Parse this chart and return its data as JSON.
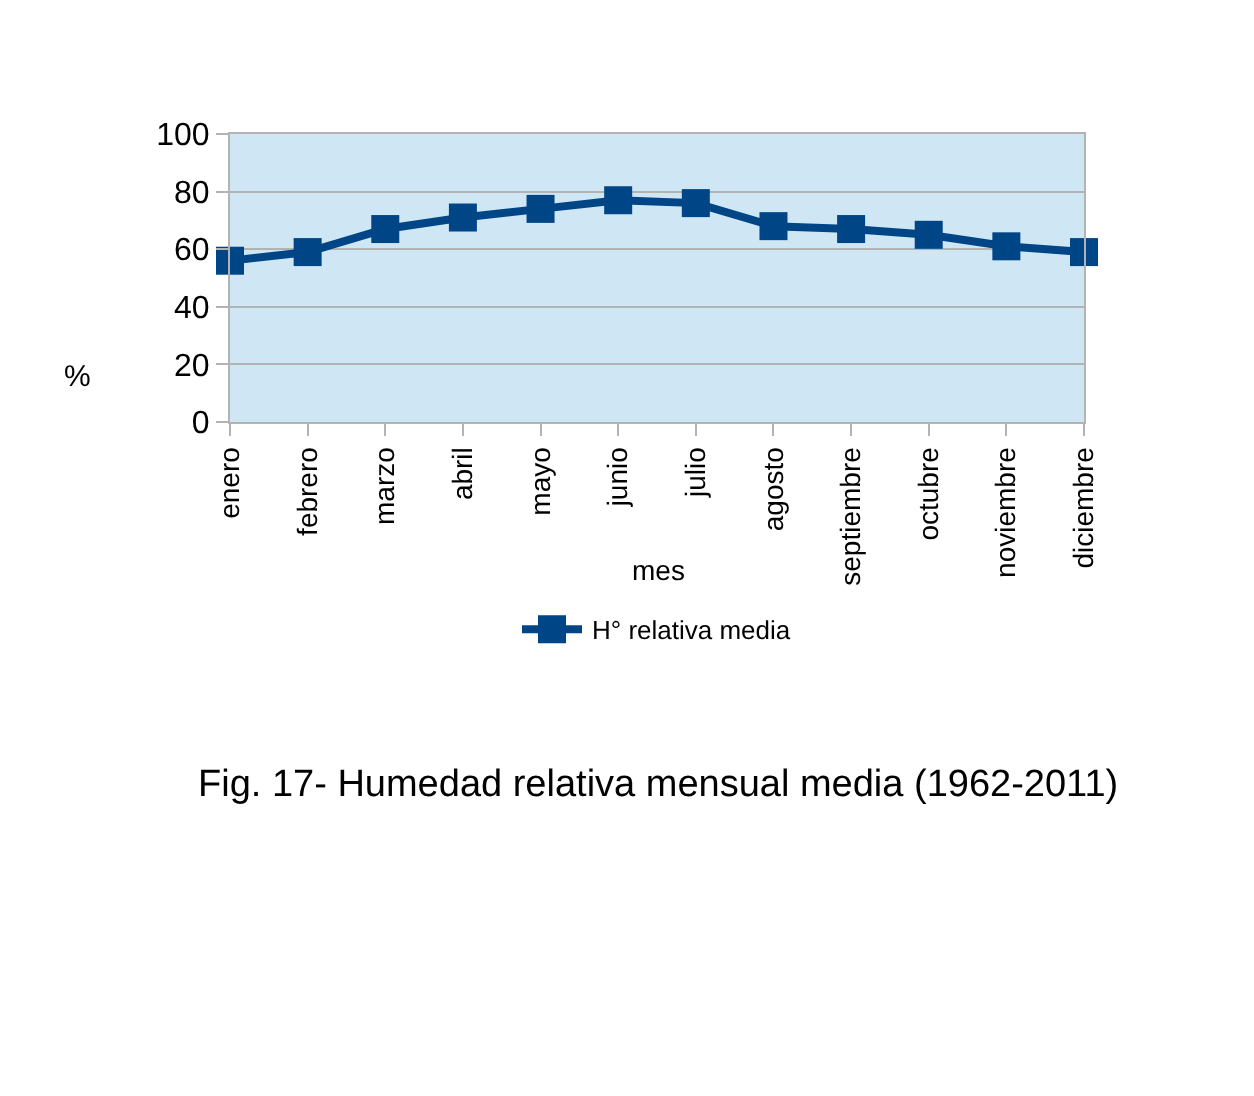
{
  "chart_data": {
    "type": "line",
    "categories": [
      "enero",
      "febrero",
      "marzo",
      "abril",
      "mayo",
      "junio",
      "julio",
      "agosto",
      "septiembre",
      "octubre",
      "noviembre",
      "diciembre"
    ],
    "series": [
      {
        "name": "H° relativa media",
        "color": "#004586",
        "values": [
          56,
          59,
          67,
          71,
          74,
          77,
          76,
          68,
          67,
          65,
          61,
          59
        ]
      }
    ],
    "xlabel": "mes",
    "ylabel": "%",
    "ylim": [
      0,
      100
    ],
    "yticks": [
      0,
      20,
      40,
      60,
      80,
      100
    ],
    "grid": "y",
    "legend": "bottom",
    "marker": "square",
    "line_style": "solid",
    "annotations": [
      "Fig. 17- Humedad relativa mensual media (1962-2011)"
    ]
  }
}
